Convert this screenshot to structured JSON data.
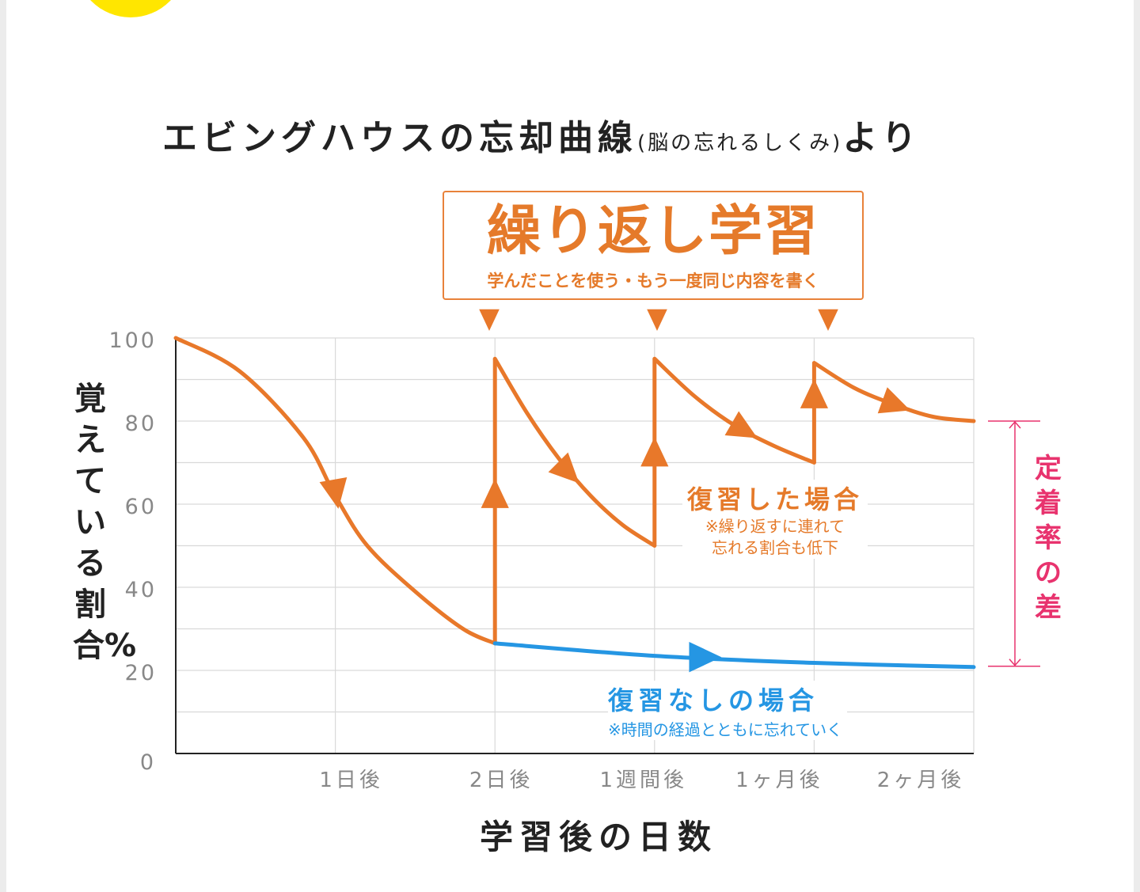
{
  "title": {
    "main": "エビングハウスの忘却曲線",
    "paren": "(脳の忘れるしくみ)",
    "tail": "より"
  },
  "callout": {
    "title": "繰り返し学習",
    "subtitle": "学んだことを使う・もう一度同じ内容を書く"
  },
  "annotations": {
    "reviewed": {
      "title": "復習した場合",
      "note1": "※繰り返すに連れて",
      "note2": "忘れる割合も低下"
    },
    "not_reviewed": {
      "title": "復習なしの場合",
      "note": "※時間の経過とともに忘れていく"
    },
    "difference": "定着率の差"
  },
  "colors": {
    "reviewed": "#e8782a",
    "not_reviewed": "#2596e3",
    "difference": "#e8336e",
    "grid": "#d9d9d9"
  },
  "chart_data": {
    "type": "line",
    "xlabel": "学習後の日数",
    "ylabel": "覚えている割合%",
    "ylim": [
      0,
      100
    ],
    "yticks": [
      "0",
      "20",
      "40",
      "60",
      "80",
      "100"
    ],
    "xtick_labels": [
      "1日後",
      "2日後",
      "1週間後",
      "1ヶ月後",
      "2ヶ月後"
    ],
    "grid": true,
    "review_points": [
      "2日後",
      "1週間後",
      "1ヶ月後"
    ],
    "series": [
      {
        "name": "復習した場合",
        "segments": [
          [
            [
              0,
              100
            ],
            [
              0.4,
              92
            ],
            [
              0.8,
              76
            ],
            [
              1,
              62
            ],
            [
              1.2,
              50
            ],
            [
              1.5,
              39
            ],
            [
              1.8,
              30
            ],
            [
              2,
              26.5
            ]
          ],
          [
            [
              2,
              95
            ],
            [
              2.2,
              82
            ],
            [
              2.4,
              71
            ],
            [
              2.6,
              62
            ],
            [
              2.8,
              55
            ],
            [
              3,
              50
            ]
          ],
          [
            [
              3,
              95
            ],
            [
              3.25,
              86
            ],
            [
              3.5,
              79
            ],
            [
              3.75,
              74
            ],
            [
              4,
              70
            ]
          ],
          [
            [
              4,
              94
            ],
            [
              4.25,
              88
            ],
            [
              4.5,
              84
            ],
            [
              4.75,
              81
            ],
            [
              5,
              80
            ]
          ]
        ]
      },
      {
        "name": "復習なしの場合",
        "segments": [
          [
            [
              2,
              26.5
            ],
            [
              3,
              23.5
            ],
            [
              4,
              21.8
            ],
            [
              5,
              20.8
            ]
          ]
        ]
      }
    ]
  }
}
